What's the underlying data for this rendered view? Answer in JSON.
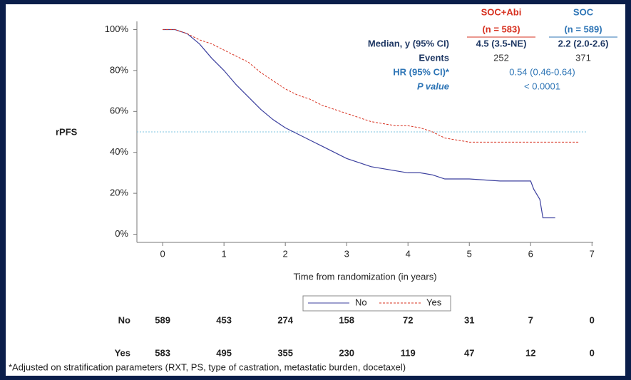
{
  "chart_data": {
    "type": "line",
    "ylabel": "rPFS",
    "xlabel": "Time from randomization (in years)",
    "xlim": [
      -0.42,
      7.02
    ],
    "ylim": [
      -4,
      104
    ],
    "xticks": [
      0,
      1,
      2,
      3,
      4,
      5,
      6,
      7
    ],
    "yticks": [
      {
        "value": 0,
        "label": "0%"
      },
      {
        "value": 20,
        "label": "20%"
      },
      {
        "value": 40,
        "label": "40%"
      },
      {
        "value": 60,
        "label": "60%"
      },
      {
        "value": 80,
        "label": "80%"
      },
      {
        "value": 100,
        "label": "100%"
      }
    ],
    "reference_line": 50,
    "reference_color": "#7fc4e0",
    "series": [
      {
        "name": "No",
        "color": "#3b3f9e",
        "dashed": false,
        "x": [
          0,
          0.2,
          0.4,
          0.6,
          0.8,
          1,
          1.2,
          1.4,
          1.6,
          1.8,
          2,
          2.2,
          2.4,
          2.6,
          2.8,
          3,
          3.2,
          3.4,
          3.6,
          3.8,
          4,
          4.2,
          4.4,
          4.6,
          5,
          5.5,
          6,
          6.05,
          6.15,
          6.2,
          6.4
        ],
        "values": [
          100,
          100,
          98,
          93,
          86,
          80,
          73,
          67,
          61,
          56,
          52,
          49,
          46,
          43,
          40,
          37,
          35,
          33,
          32,
          31,
          30,
          30,
          29,
          27,
          27,
          26,
          26,
          22,
          17,
          8,
          8
        ]
      },
      {
        "name": "Yes",
        "color": "#d7301f",
        "dashed": true,
        "x": [
          0,
          0.2,
          0.4,
          0.6,
          0.8,
          1,
          1.2,
          1.4,
          1.6,
          1.8,
          2,
          2.2,
          2.4,
          2.6,
          2.8,
          3,
          3.2,
          3.4,
          3.6,
          3.8,
          4,
          4.2,
          4.4,
          4.6,
          4.8,
          5,
          5.5,
          6,
          6.5,
          6.8
        ],
        "values": [
          100,
          100,
          98,
          95,
          93,
          90,
          87,
          84,
          79,
          75,
          71,
          68,
          66,
          63,
          61,
          59,
          57,
          55,
          54,
          53,
          53,
          52,
          50,
          47,
          46,
          45,
          45,
          45,
          45,
          45
        ]
      }
    ],
    "at_risk": {
      "rows": [
        {
          "label": "No",
          "values": [
            589,
            453,
            274,
            158,
            72,
            31,
            7,
            0
          ]
        },
        {
          "label": "Yes",
          "values": [
            583,
            495,
            355,
            230,
            119,
            47,
            12,
            0
          ]
        }
      ]
    }
  },
  "stats_table": {
    "headers": [
      [
        "SOC+Abi",
        "(n = 583)"
      ],
      [
        "SOC",
        "(n = 589)"
      ]
    ],
    "header_colors": [
      "#d7301f",
      "#2e75b6"
    ],
    "rows": [
      {
        "label": "Median, y (95% CI)",
        "cells": [
          "4.5 (3.5-NE)",
          "2.2 (2.0-2.6)"
        ]
      },
      {
        "label": "Events",
        "cells": [
          "252",
          "371"
        ]
      },
      {
        "label": "HR (95% CI)*",
        "cells": [
          "0.54 (0.46-0.64)"
        ]
      },
      {
        "label": "P value",
        "cells": [
          "< 0.0001"
        ]
      }
    ]
  },
  "footnote": "*Adjusted on stratification parameters (RXT, PS, type of castration, metastatic burden, docetaxel)"
}
